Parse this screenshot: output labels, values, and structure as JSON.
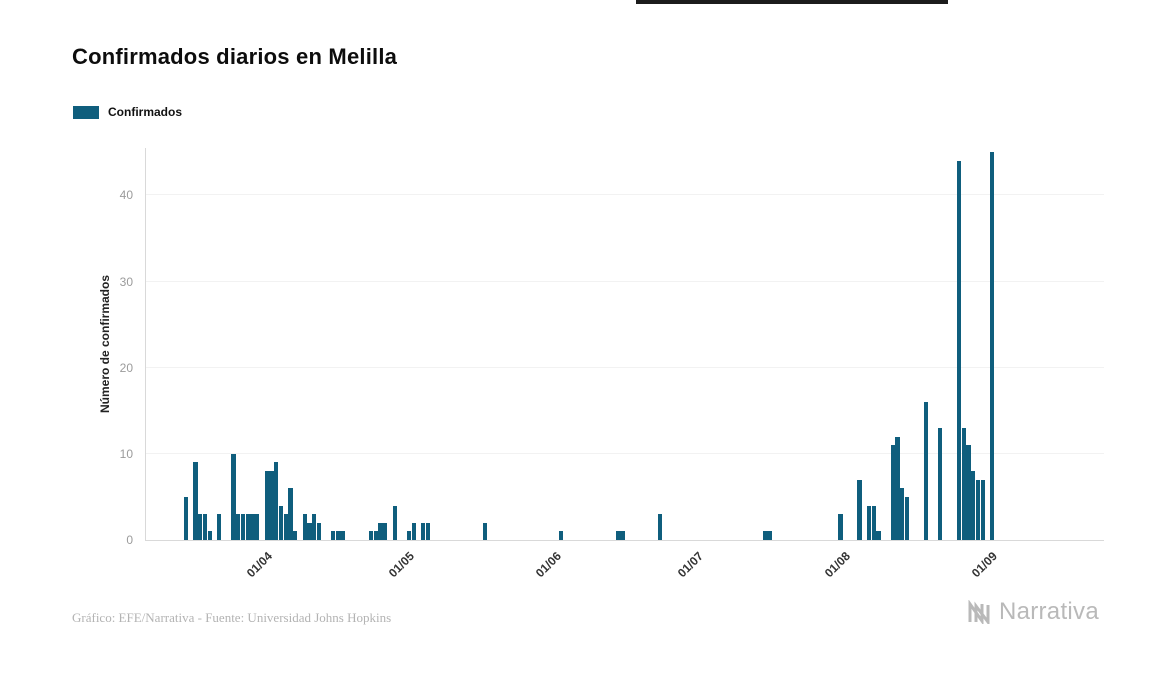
{
  "title": "Confirmados diarios en Melilla",
  "legend": {
    "label": "Confirmados",
    "color": "#0f5e7d",
    "position": "top-left"
  },
  "footer": {
    "credit": "Gráfico: EFE/Narrativa - Fuente: Universidad Johns Hopkins",
    "brand": "Narrativa"
  },
  "chart_data": {
    "type": "bar",
    "title": "Confirmados diarios en Melilla",
    "series_name": "Confirmados",
    "xlabel": "",
    "ylabel": "Número de confirmados",
    "bar_color": "#0f5e7d",
    "ylim": [
      0,
      45.5
    ],
    "yticks": [
      0,
      10,
      20,
      30,
      40
    ],
    "grid": "faint-horizontal",
    "legend_position": "top-left",
    "x_domain_start": "07/03",
    "x_domain_days": 202,
    "xticks": [
      {
        "label": "01/04",
        "day": 25
      },
      {
        "label": "01/05",
        "day": 55
      },
      {
        "label": "01/06",
        "day": 86
      },
      {
        "label": "01/07",
        "day": 116
      },
      {
        "label": "01/08",
        "day": 147
      },
      {
        "label": "01/09",
        "day": 178
      }
    ],
    "points": [
      {
        "date": "15/03",
        "day": 8,
        "value": 5
      },
      {
        "date": "17/03",
        "day": 10,
        "value": 9
      },
      {
        "date": "18/03",
        "day": 11,
        "value": 3
      },
      {
        "date": "19/03",
        "day": 12,
        "value": 3
      },
      {
        "date": "20/03",
        "day": 13,
        "value": 1
      },
      {
        "date": "22/03",
        "day": 15,
        "value": 3
      },
      {
        "date": "25/03",
        "day": 18,
        "value": 10
      },
      {
        "date": "26/03",
        "day": 19,
        "value": 3
      },
      {
        "date": "27/03",
        "day": 20,
        "value": 3
      },
      {
        "date": "28/03",
        "day": 21,
        "value": 3
      },
      {
        "date": "29/03",
        "day": 22,
        "value": 3
      },
      {
        "date": "30/03",
        "day": 23,
        "value": 3
      },
      {
        "date": "01/04",
        "day": 25,
        "value": 8
      },
      {
        "date": "02/04",
        "day": 26,
        "value": 8
      },
      {
        "date": "03/04",
        "day": 27,
        "value": 9
      },
      {
        "date": "04/04",
        "day": 28,
        "value": 4
      },
      {
        "date": "05/04",
        "day": 29,
        "value": 3
      },
      {
        "date": "06/04",
        "day": 30,
        "value": 6
      },
      {
        "date": "07/04",
        "day": 31,
        "value": 1
      },
      {
        "date": "09/04",
        "day": 33,
        "value": 3
      },
      {
        "date": "10/04",
        "day": 34,
        "value": 2
      },
      {
        "date": "11/04",
        "day": 35,
        "value": 3
      },
      {
        "date": "12/04",
        "day": 36,
        "value": 2
      },
      {
        "date": "15/04",
        "day": 39,
        "value": 1
      },
      {
        "date": "16/04",
        "day": 40,
        "value": 1
      },
      {
        "date": "17/04",
        "day": 41,
        "value": 1
      },
      {
        "date": "23/04",
        "day": 47,
        "value": 1
      },
      {
        "date": "24/04",
        "day": 48,
        "value": 1
      },
      {
        "date": "25/04",
        "day": 49,
        "value": 2
      },
      {
        "date": "26/04",
        "day": 50,
        "value": 2
      },
      {
        "date": "28/04",
        "day": 52,
        "value": 4
      },
      {
        "date": "01/05",
        "day": 55,
        "value": 1
      },
      {
        "date": "02/05",
        "day": 56,
        "value": 2
      },
      {
        "date": "04/05",
        "day": 58,
        "value": 2
      },
      {
        "date": "05/05",
        "day": 59,
        "value": 2
      },
      {
        "date": "17/05",
        "day": 71,
        "value": 2
      },
      {
        "date": "02/06",
        "day": 87,
        "value": 1
      },
      {
        "date": "14/06",
        "day": 99,
        "value": 1
      },
      {
        "date": "15/06",
        "day": 100,
        "value": 1
      },
      {
        "date": "23/06",
        "day": 108,
        "value": 3
      },
      {
        "date": "15/07",
        "day": 130,
        "value": 1
      },
      {
        "date": "16/07",
        "day": 131,
        "value": 1
      },
      {
        "date": "31/07",
        "day": 146,
        "value": 3
      },
      {
        "date": "04/08",
        "day": 150,
        "value": 7
      },
      {
        "date": "06/08",
        "day": 152,
        "value": 4
      },
      {
        "date": "07/08",
        "day": 153,
        "value": 4
      },
      {
        "date": "08/08",
        "day": 154,
        "value": 1
      },
      {
        "date": "11/08",
        "day": 157,
        "value": 11
      },
      {
        "date": "12/08",
        "day": 158,
        "value": 12
      },
      {
        "date": "13/08",
        "day": 159,
        "value": 6
      },
      {
        "date": "14/08",
        "day": 160,
        "value": 5
      },
      {
        "date": "18/08",
        "day": 164,
        "value": 16
      },
      {
        "date": "21/08",
        "day": 167,
        "value": 13
      },
      {
        "date": "25/08",
        "day": 171,
        "value": 44
      },
      {
        "date": "26/08",
        "day": 172,
        "value": 13
      },
      {
        "date": "27/08",
        "day": 173,
        "value": 11
      },
      {
        "date": "28/08",
        "day": 174,
        "value": 8
      },
      {
        "date": "29/08",
        "day": 175,
        "value": 7
      },
      {
        "date": "30/08",
        "day": 176,
        "value": 7
      },
      {
        "date": "01/09",
        "day": 178,
        "value": 45
      }
    ]
  }
}
